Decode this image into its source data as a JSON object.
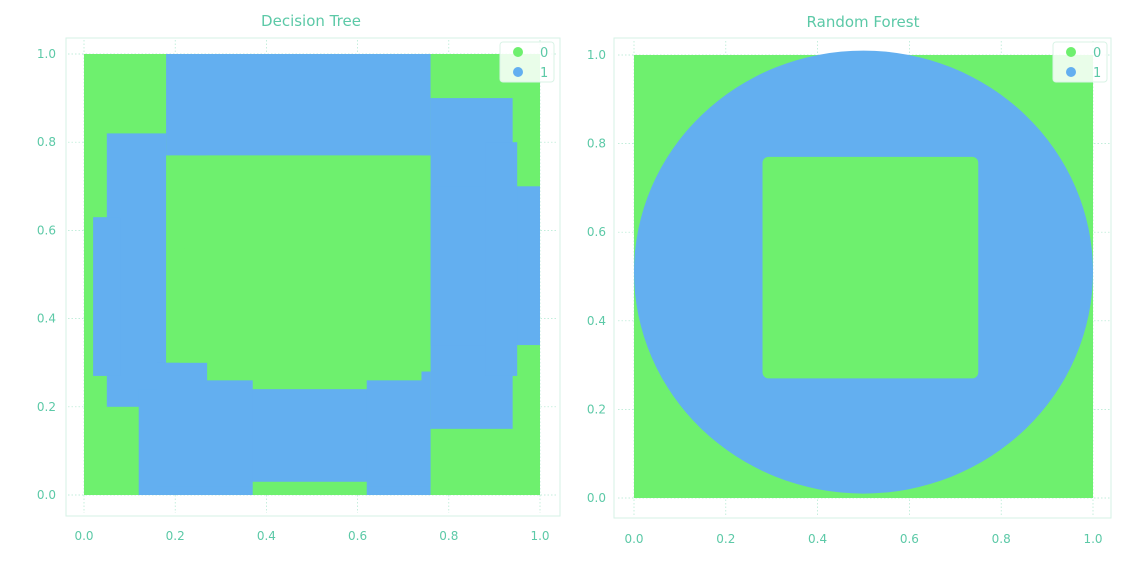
{
  "colors": {
    "class_0": "#6ef06e",
    "class_1": "#63aff0",
    "text": "#5cc9a7"
  },
  "chart_data": [
    {
      "type": "scatter",
      "title": "Decision Tree",
      "xlim": [
        0,
        1
      ],
      "ylim": [
        0,
        1
      ],
      "xticks": [
        "0.0",
        "0.2",
        "0.4",
        "0.6",
        "0.8",
        "1.0"
      ],
      "yticks": [
        "0.0",
        "0.2",
        "0.4",
        "0.6",
        "0.8",
        "1.0"
      ],
      "grid": true,
      "legend": {
        "placement": "top-right",
        "entries": [
          "0",
          "1"
        ]
      },
      "series": [
        {
          "name": "0",
          "description_regions": "background and inner square"
        },
        {
          "name": "1",
          "description_regions": "blocky ring"
        }
      ],
      "class1_regions": [
        [
          0.18,
          0.77,
          0.76,
          1.0
        ],
        [
          0.05,
          0.2,
          0.18,
          0.82
        ],
        [
          0.02,
          0.27,
          0.08,
          0.63
        ],
        [
          0.12,
          0.0,
          0.76,
          0.24
        ],
        [
          0.16,
          0.02,
          0.37,
          0.3
        ],
        [
          0.62,
          0.02,
          0.76,
          0.28
        ],
        [
          0.76,
          0.15,
          0.94,
          0.9
        ],
        [
          0.76,
          0.34,
          1.0,
          0.7
        ],
        [
          0.88,
          0.27,
          0.95,
          0.8
        ]
      ],
      "class0_regions": [
        [
          0.27,
          0.26,
          0.74,
          0.77
        ],
        [
          0.21,
          0.3,
          0.27,
          0.56
        ],
        [
          0.19,
          0.36,
          0.22,
          0.77
        ],
        [
          0.37,
          0.0,
          0.62,
          0.03
        ]
      ]
    },
    {
      "type": "scatter",
      "title": "Random Forest",
      "xlim": [
        0,
        1
      ],
      "ylim": [
        0,
        1
      ],
      "xticks": [
        "0.0",
        "0.2",
        "0.4",
        "0.6",
        "0.8",
        "1.0"
      ],
      "yticks": [
        "0.0",
        "0.2",
        "0.4",
        "0.6",
        "0.8",
        "1.0"
      ],
      "grid": true,
      "legend": {
        "placement": "top-right",
        "entries": [
          "0",
          "1"
        ]
      },
      "series": [
        {
          "name": "0",
          "description_regions": "background and inner square"
        },
        {
          "name": "1",
          "description_regions": "circular ring"
        }
      ],
      "ring": {
        "center": [
          0.5,
          0.51
        ],
        "outer_radius": 0.5,
        "inner_square": [
          0.28,
          0.27,
          0.75,
          0.77
        ]
      }
    }
  ]
}
